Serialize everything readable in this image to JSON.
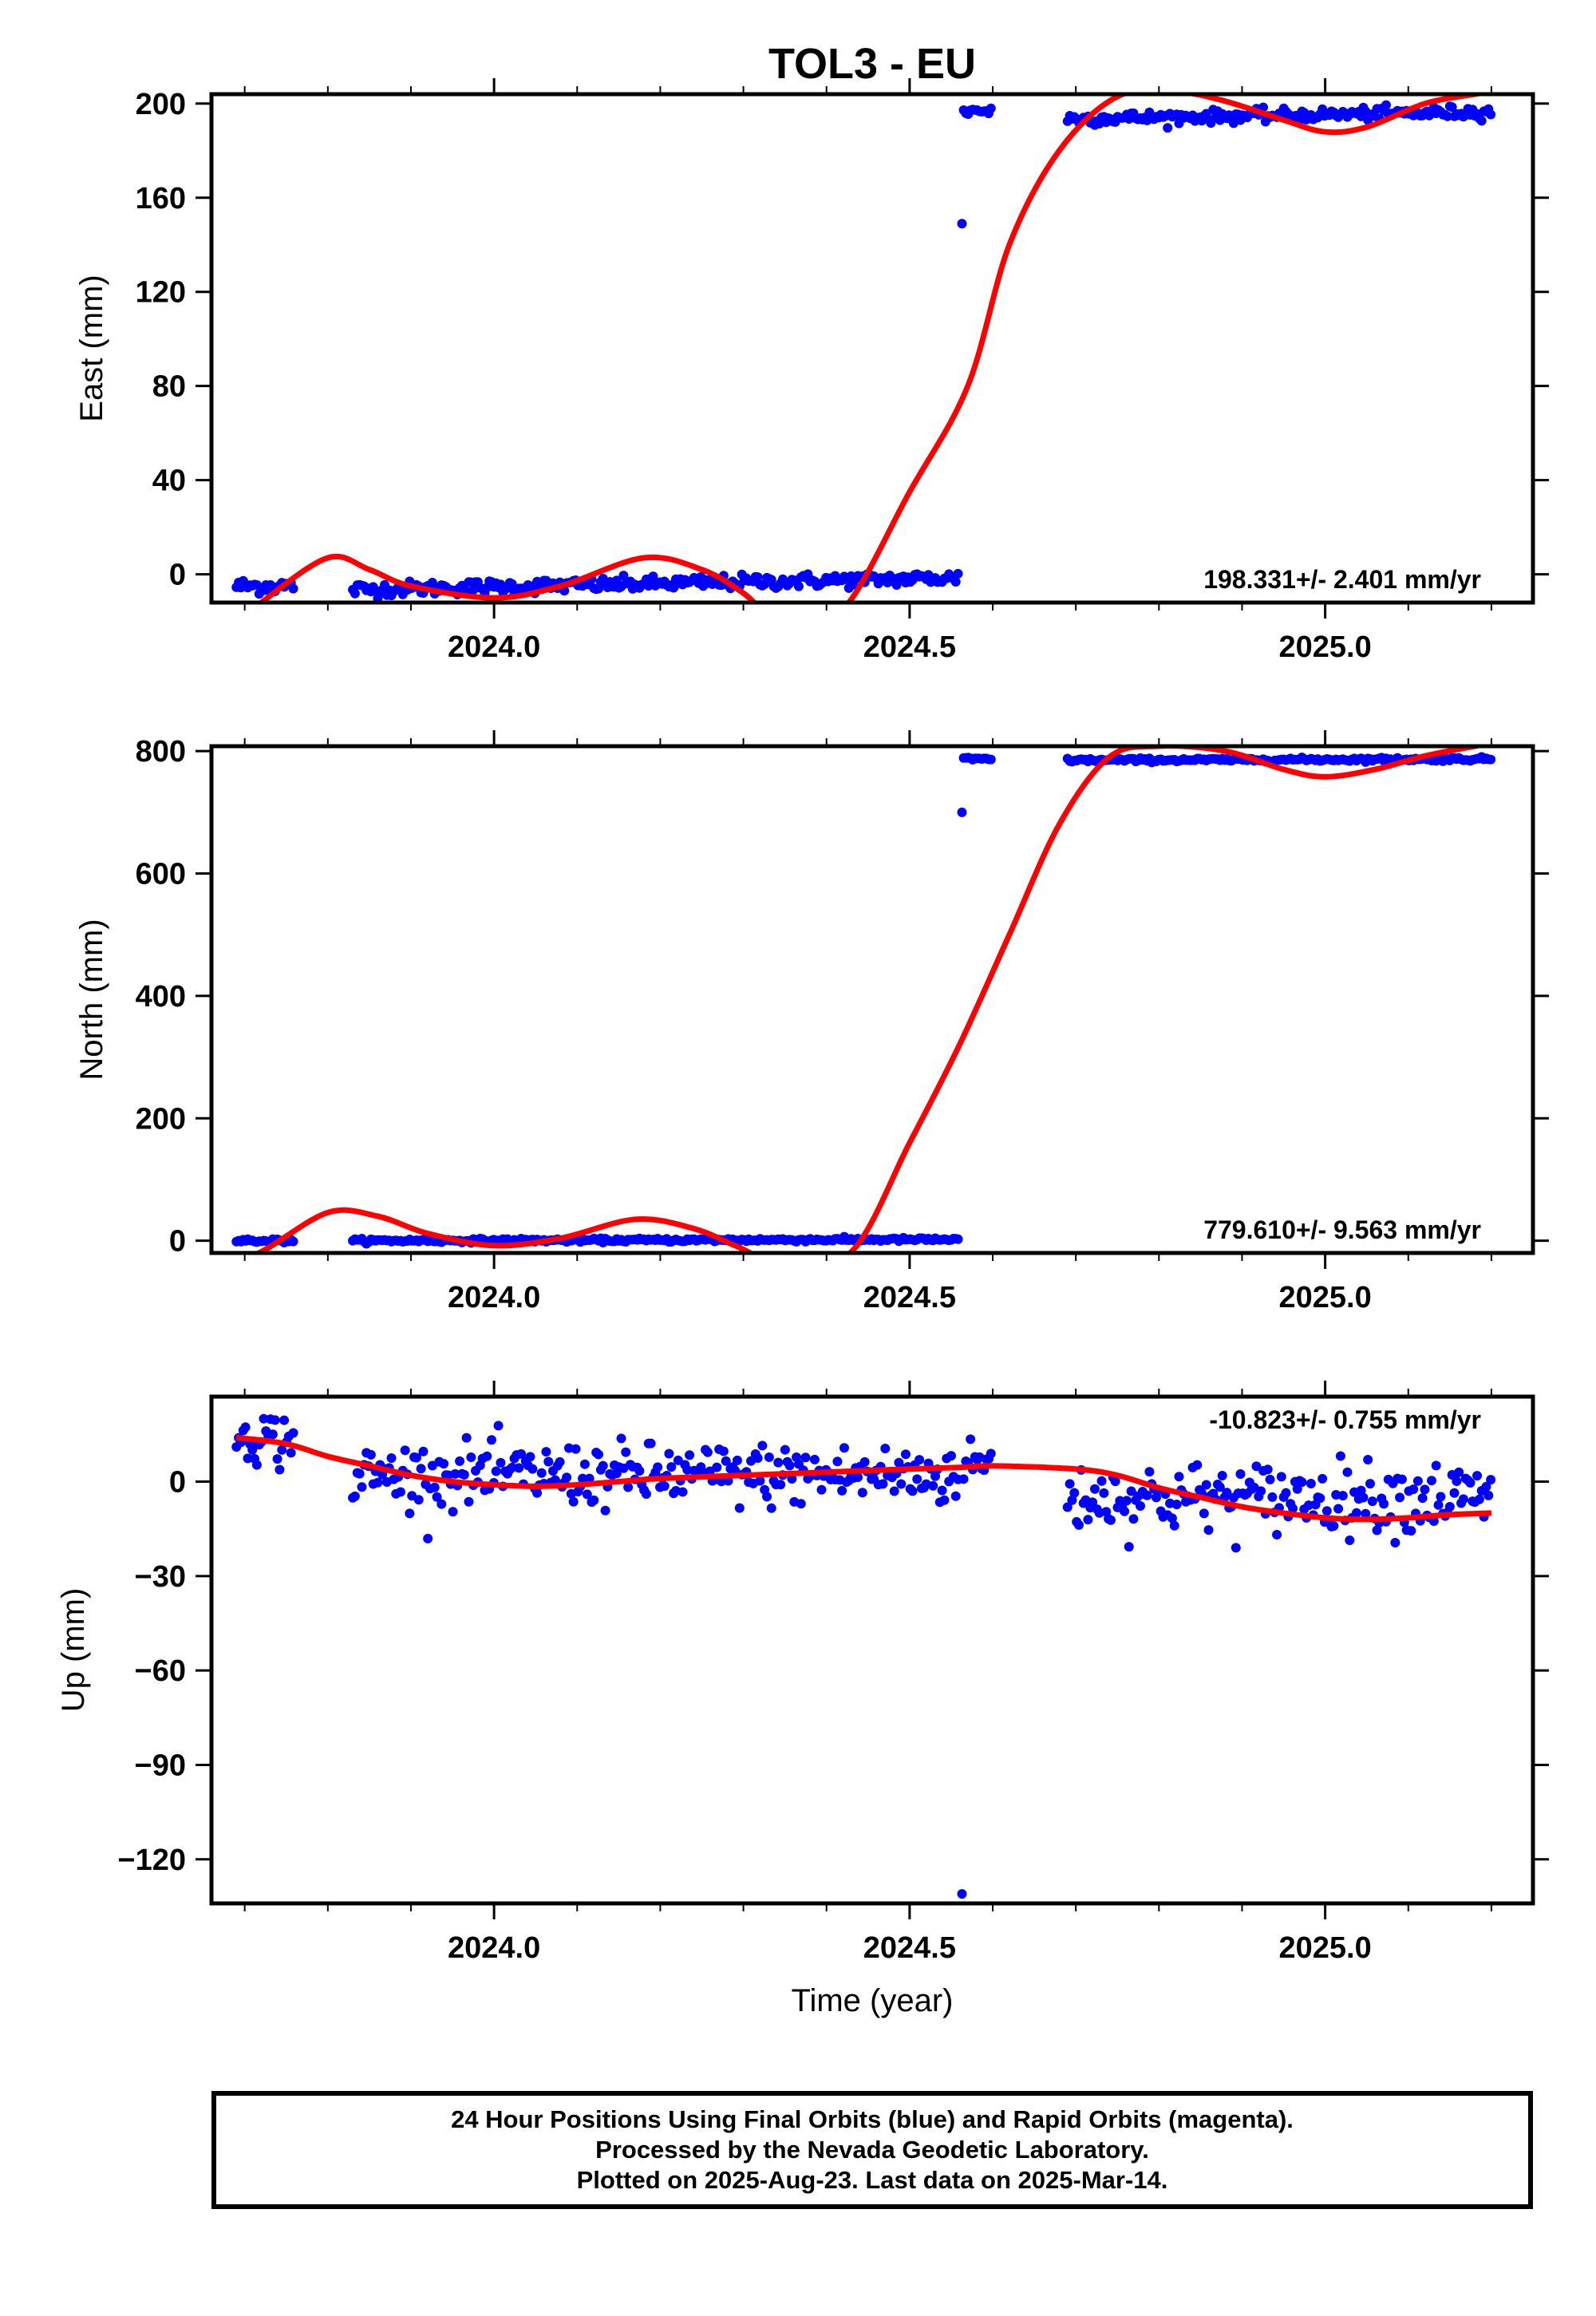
{
  "figure_title": "TOL3 - EU",
  "x_axis_label": "Time (year)",
  "footer_lines": [
    "24 Hour Positions Using Final Orbits (blue) and Rapid Orbits (magenta).",
    "Processed by the Nevada Geodetic Laboratory.",
    "Plotted on 2025-Aug-23. Last data on 2025-Mar-14."
  ],
  "colors": {
    "data": "#0000ff",
    "model": "#ff0000",
    "axes": "#000000",
    "background": "#ffffff"
  },
  "chart_data": [
    {
      "type": "scatter",
      "component": "east",
      "ylabel": "East (mm)",
      "rate_label": "198.331+/- 2.401 mm/yr",
      "xlim": [
        2023.66,
        2025.25
      ],
      "ylim": [
        -12,
        204
      ],
      "xticks": [
        2024.0,
        2024.5,
        2025.0
      ],
      "xtick_labels": [
        "2024.0",
        "2024.5",
        "2025.0"
      ],
      "yticks": [
        0,
        40,
        80,
        120,
        160,
        200
      ],
      "ytick_labels": [
        "0",
        "40",
        "80",
        "120",
        "160",
        "200"
      ],
      "series": [
        {
          "kind": "daily positions",
          "segments": [
            {
              "x": [
                2023.69,
                2023.76
              ],
              "mean": -5,
              "trend": 0,
              "noise": 1.6
            },
            {
              "x": [
                2023.83,
                2024.56
              ],
              "mean": -4,
              "trend": 5,
              "noise": 1.5
            },
            {
              "x": [
                2024.565,
                2024.6
              ],
              "mean": 197,
              "trend": 0,
              "noise": 1.2
            },
            {
              "x": [
                2024.69,
                2025.2
              ],
              "mean": 195,
              "trend": 3,
              "noise": 1.3
            }
          ],
          "outliers": [
            {
              "x": 2024.563,
              "y": 149
            }
          ]
        }
      ],
      "model": {
        "kind": "fitted trajectory",
        "points": [
          [
            2023.66,
            -30
          ],
          [
            2023.72,
            -12
          ],
          [
            2023.8,
            7
          ],
          [
            2023.85,
            2
          ],
          [
            2023.9,
            -5
          ],
          [
            2024.0,
            -10
          ],
          [
            2024.08,
            -5
          ],
          [
            2024.18,
            7
          ],
          [
            2024.25,
            2
          ],
          [
            2024.3,
            -8
          ],
          [
            2024.35,
            -22
          ],
          [
            2024.42,
            -15
          ],
          [
            2024.5,
            35
          ],
          [
            2024.57,
            80
          ],
          [
            2024.62,
            140
          ],
          [
            2024.68,
            180
          ],
          [
            2024.75,
            203
          ],
          [
            2024.82,
            205
          ],
          [
            2024.88,
            201
          ],
          [
            2024.95,
            193
          ],
          [
            2025.0,
            188
          ],
          [
            2025.05,
            190
          ],
          [
            2025.12,
            200
          ],
          [
            2025.18,
            204
          ],
          [
            2025.2,
            205
          ]
        ]
      }
    },
    {
      "type": "scatter",
      "component": "north",
      "ylabel": "North (mm)",
      "rate_label": "779.610+/- 9.563 mm/yr",
      "xlim": [
        2023.66,
        2025.25
      ],
      "ylim": [
        -20,
        808
      ],
      "xticks": [
        2024.0,
        2024.5,
        2025.0
      ],
      "xtick_labels": [
        "2024.0",
        "2024.5",
        "2025.0"
      ],
      "yticks": [
        0,
        200,
        400,
        600,
        800
      ],
      "ytick_labels": [
        "0",
        "200",
        "400",
        "600",
        "800"
      ],
      "series": [
        {
          "kind": "daily positions",
          "segments": [
            {
              "x": [
                2023.69,
                2023.76
              ],
              "mean": 0,
              "trend": 0,
              "noise": 1.5
            },
            {
              "x": [
                2023.83,
                2024.56
              ],
              "mean": 1,
              "trend": 2,
              "noise": 1.5
            },
            {
              "x": [
                2024.565,
                2024.6
              ],
              "mean": 787,
              "trend": 0,
              "noise": 1.5
            },
            {
              "x": [
                2024.69,
                2025.2
              ],
              "mean": 786,
              "trend": 2,
              "noise": 1.5
            }
          ],
          "outliers": [
            {
              "x": 2024.563,
              "y": 700
            }
          ]
        }
      ],
      "model": {
        "kind": "fitted trajectory",
        "points": [
          [
            2023.66,
            -50
          ],
          [
            2023.72,
            -18
          ],
          [
            2023.8,
            46
          ],
          [
            2023.86,
            40
          ],
          [
            2023.92,
            12
          ],
          [
            2024.0,
            -8
          ],
          [
            2024.08,
            4
          ],
          [
            2024.17,
            35
          ],
          [
            2024.24,
            20
          ],
          [
            2024.29,
            -8
          ],
          [
            2024.35,
            -40
          ],
          [
            2024.43,
            -18
          ],
          [
            2024.5,
            160
          ],
          [
            2024.56,
            320
          ],
          [
            2024.62,
            500
          ],
          [
            2024.68,
            680
          ],
          [
            2024.74,
            790
          ],
          [
            2024.8,
            808
          ],
          [
            2024.88,
            800
          ],
          [
            2024.95,
            770
          ],
          [
            2025.0,
            758
          ],
          [
            2025.06,
            770
          ],
          [
            2025.12,
            792
          ],
          [
            2025.18,
            808
          ],
          [
            2025.2,
            812
          ]
        ]
      }
    },
    {
      "type": "scatter",
      "component": "up",
      "ylabel": "Up (mm)",
      "rate_label": "-10.823+/- 0.755 mm/yr",
      "xlim": [
        2023.66,
        2025.25
      ],
      "ylim": [
        -134,
        27
      ],
      "xticks": [
        2024.0,
        2024.5,
        2025.0
      ],
      "xtick_labels": [
        "2024.0",
        "2024.5",
        "2025.0"
      ],
      "yticks": [
        0,
        -30,
        -60,
        -90,
        -120
      ],
      "ytick_labels": [
        "0",
        "−30",
        "−60",
        "−90",
        "−120"
      ],
      "series": [
        {
          "kind": "daily positions",
          "segments": [
            {
              "x": [
                2023.69,
                2023.76
              ],
              "mean": 14,
              "trend": -4,
              "noise": 4.5
            },
            {
              "x": [
                2023.83,
                2024.56
              ],
              "mean": 2,
              "trend": 0,
              "noise": 5
            },
            {
              "x": [
                2024.565,
                2024.6
              ],
              "mean": 6,
              "trend": 0,
              "noise": 3.5
            },
            {
              "x": [
                2024.69,
                2025.2
              ],
              "mean": -5,
              "trend": 0,
              "noise": 5.5
            }
          ],
          "outliers": [
            {
              "x": 2024.563,
              "y": -131
            }
          ]
        }
      ],
      "model": {
        "kind": "fitted trajectory",
        "points": [
          [
            2023.69,
            14
          ],
          [
            2023.75,
            12
          ],
          [
            2023.8,
            8
          ],
          [
            2023.85,
            5
          ],
          [
            2023.9,
            2
          ],
          [
            2023.95,
            0
          ],
          [
            2024.0,
            -1
          ],
          [
            2024.05,
            -1.5
          ],
          [
            2024.1,
            -1
          ],
          [
            2024.15,
            0
          ],
          [
            2024.2,
            1
          ],
          [
            2024.3,
            2
          ],
          [
            2024.4,
            3
          ],
          [
            2024.5,
            4
          ],
          [
            2024.56,
            4.5
          ],
          [
            2024.6,
            5
          ],
          [
            2024.7,
            4
          ],
          [
            2024.75,
            2
          ],
          [
            2024.8,
            -2
          ],
          [
            2024.85,
            -5
          ],
          [
            2024.9,
            -8
          ],
          [
            2024.95,
            -10
          ],
          [
            2025.0,
            -11.5
          ],
          [
            2025.05,
            -12
          ],
          [
            2025.1,
            -11.5
          ],
          [
            2025.15,
            -10.5
          ],
          [
            2025.2,
            -10
          ]
        ]
      }
    }
  ]
}
